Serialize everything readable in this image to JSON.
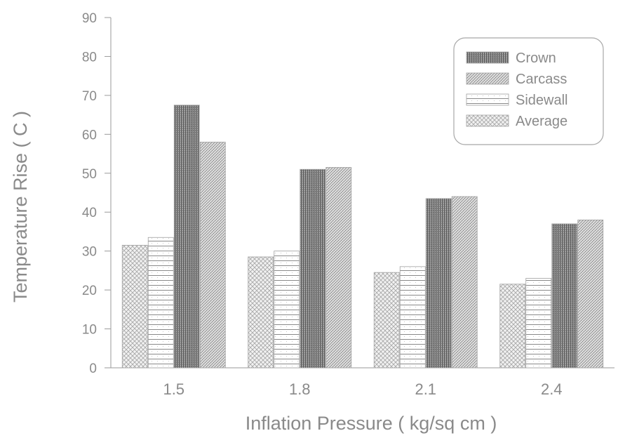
{
  "chart_data": {
    "type": "bar",
    "title": "",
    "xlabel": "Inflation Pressure ( kg/sq cm )",
    "ylabel": "Temperature Rise ( C )",
    "ylim": [
      0,
      90
    ],
    "yticks": [
      0,
      10,
      20,
      30,
      40,
      50,
      60,
      70,
      80,
      90
    ],
    "categories": [
      "1.5",
      "1.8",
      "2.1",
      "2.4"
    ],
    "series": [
      {
        "name": "Average",
        "values": [
          31.5,
          28.5,
          24.5,
          21.5
        ],
        "color": "#b0b0b0",
        "pattern": "crosshatch"
      },
      {
        "name": "Sidewall",
        "values": [
          33.5,
          30,
          26,
          23
        ],
        "color": "#9a9a9a",
        "pattern": "horizontal-lines"
      },
      {
        "name": "Crown",
        "values": [
          67.5,
          51,
          43.5,
          37
        ],
        "color": "#6e6e6e",
        "pattern": "dense-dark"
      },
      {
        "name": "Carcass",
        "values": [
          58,
          51.5,
          44,
          38
        ],
        "color": "#9c9c9c",
        "pattern": "stipple"
      }
    ],
    "legend": {
      "position": "top-right",
      "entries": [
        "Crown",
        "Carcass",
        "Sidewall",
        "Average"
      ]
    },
    "grid": false
  }
}
